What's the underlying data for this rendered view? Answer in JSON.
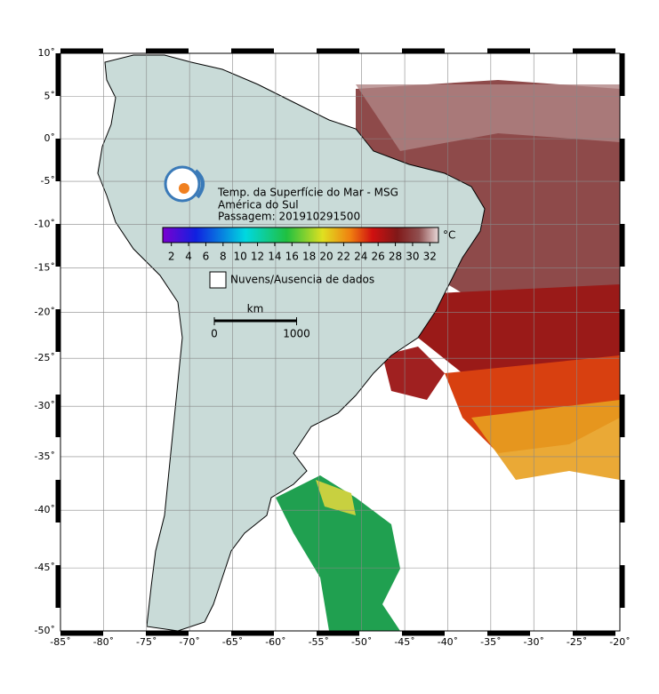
{
  "map": {
    "title_lines": [
      "Temp. da Superfície do Mar - MSG",
      "América do Sul",
      "Passagem: 201910291500"
    ],
    "colorbar": {
      "unit": "°C",
      "lim": [
        1,
        33
      ],
      "ticks": [
        2,
        4,
        6,
        8,
        10,
        12,
        14,
        16,
        18,
        20,
        22,
        24,
        26,
        28,
        30,
        32
      ]
    },
    "legend": {
      "no_data": "Nuvens/Ausencia de dados"
    },
    "scale_bar": {
      "unit": "km",
      "ticks": [
        0,
        1000
      ]
    },
    "lon": {
      "lim": [
        -85,
        -20
      ],
      "ticks": [
        {
          "value": -85,
          "label": "-85˚"
        },
        {
          "value": -80,
          "label": "-80˚"
        },
        {
          "value": -75,
          "label": "-75˚"
        },
        {
          "value": -70,
          "label": "-70˚"
        },
        {
          "value": -65,
          "label": "-65˚"
        },
        {
          "value": -60,
          "label": "-60˚"
        },
        {
          "value": -55,
          "label": "-55˚"
        },
        {
          "value": -50,
          "label": "-50˚"
        },
        {
          "value": -45,
          "label": "-45˚"
        },
        {
          "value": -40,
          "label": "-40˚"
        },
        {
          "value": -35,
          "label": "-35˚"
        },
        {
          "value": -30,
          "label": "-30˚"
        },
        {
          "value": -25,
          "label": "-25˚"
        },
        {
          "value": -20,
          "label": "-20˚"
        }
      ]
    },
    "lat": {
      "lim": [
        -50,
        10
      ],
      "ticks": [
        {
          "value": 10,
          "label": "10˚"
        },
        {
          "value": 5,
          "label": "5˚"
        },
        {
          "value": 0,
          "label": "0˚"
        },
        {
          "value": -5,
          "label": "-5˚"
        },
        {
          "value": -10,
          "label": "-10˚"
        },
        {
          "value": -15,
          "label": "-15˚"
        },
        {
          "value": -20,
          "label": "-20˚"
        },
        {
          "value": -25,
          "label": "-25˚"
        },
        {
          "value": -30,
          "label": "-30˚"
        },
        {
          "value": -35,
          "label": "-35˚"
        },
        {
          "value": -40,
          "label": "-40˚"
        },
        {
          "value": -45,
          "label": "-45˚"
        },
        {
          "value": -50,
          "label": "-50˚"
        }
      ]
    }
  }
}
